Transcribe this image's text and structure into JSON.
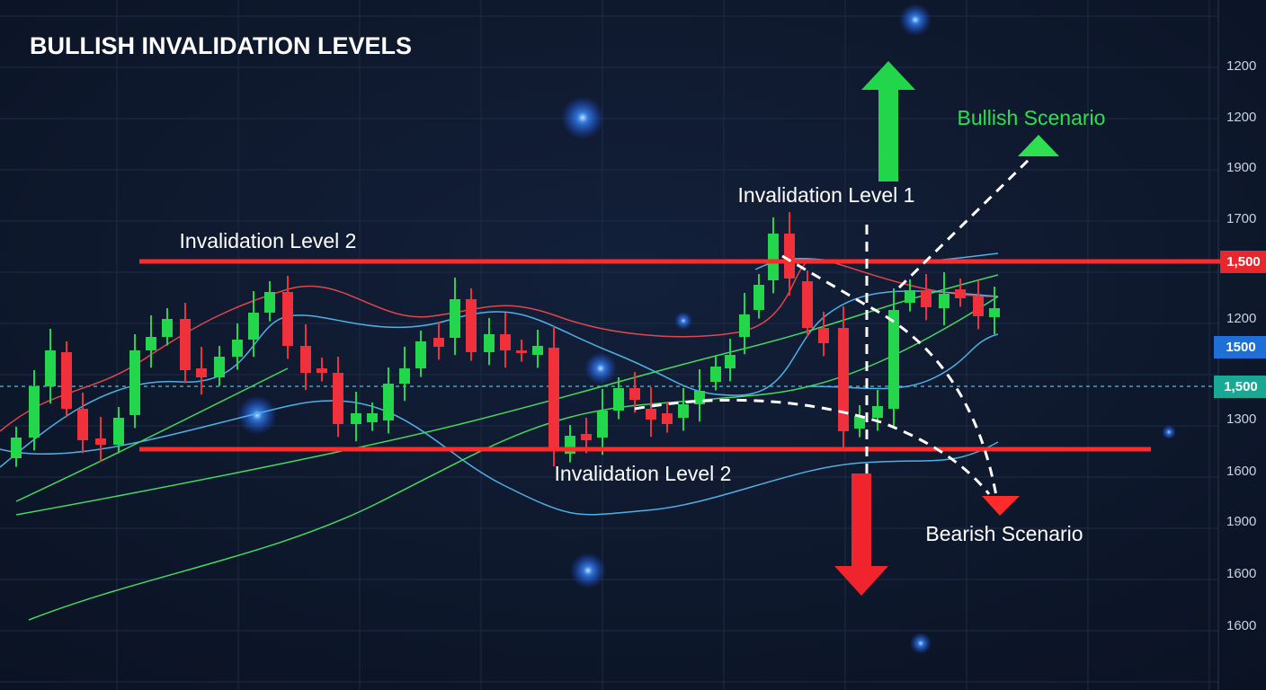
{
  "title": "BULLISH INVALIDATION LEVELS",
  "annotations": {
    "bullish": "Bullish Scenario",
    "level1": "Invalidation Level 1",
    "level2_top": "Invalidation Level 2",
    "level2_bottom": "Invalidation Level 2",
    "bearish": "Bearish Scenario"
  },
  "axis_labels": [
    "1200",
    "1200",
    "1900",
    "1700",
    "1200",
    "1300",
    "1600",
    "1900",
    "1600",
    "1600"
  ],
  "price_tags": [
    "1,500",
    "1500",
    "1,500"
  ]
}
